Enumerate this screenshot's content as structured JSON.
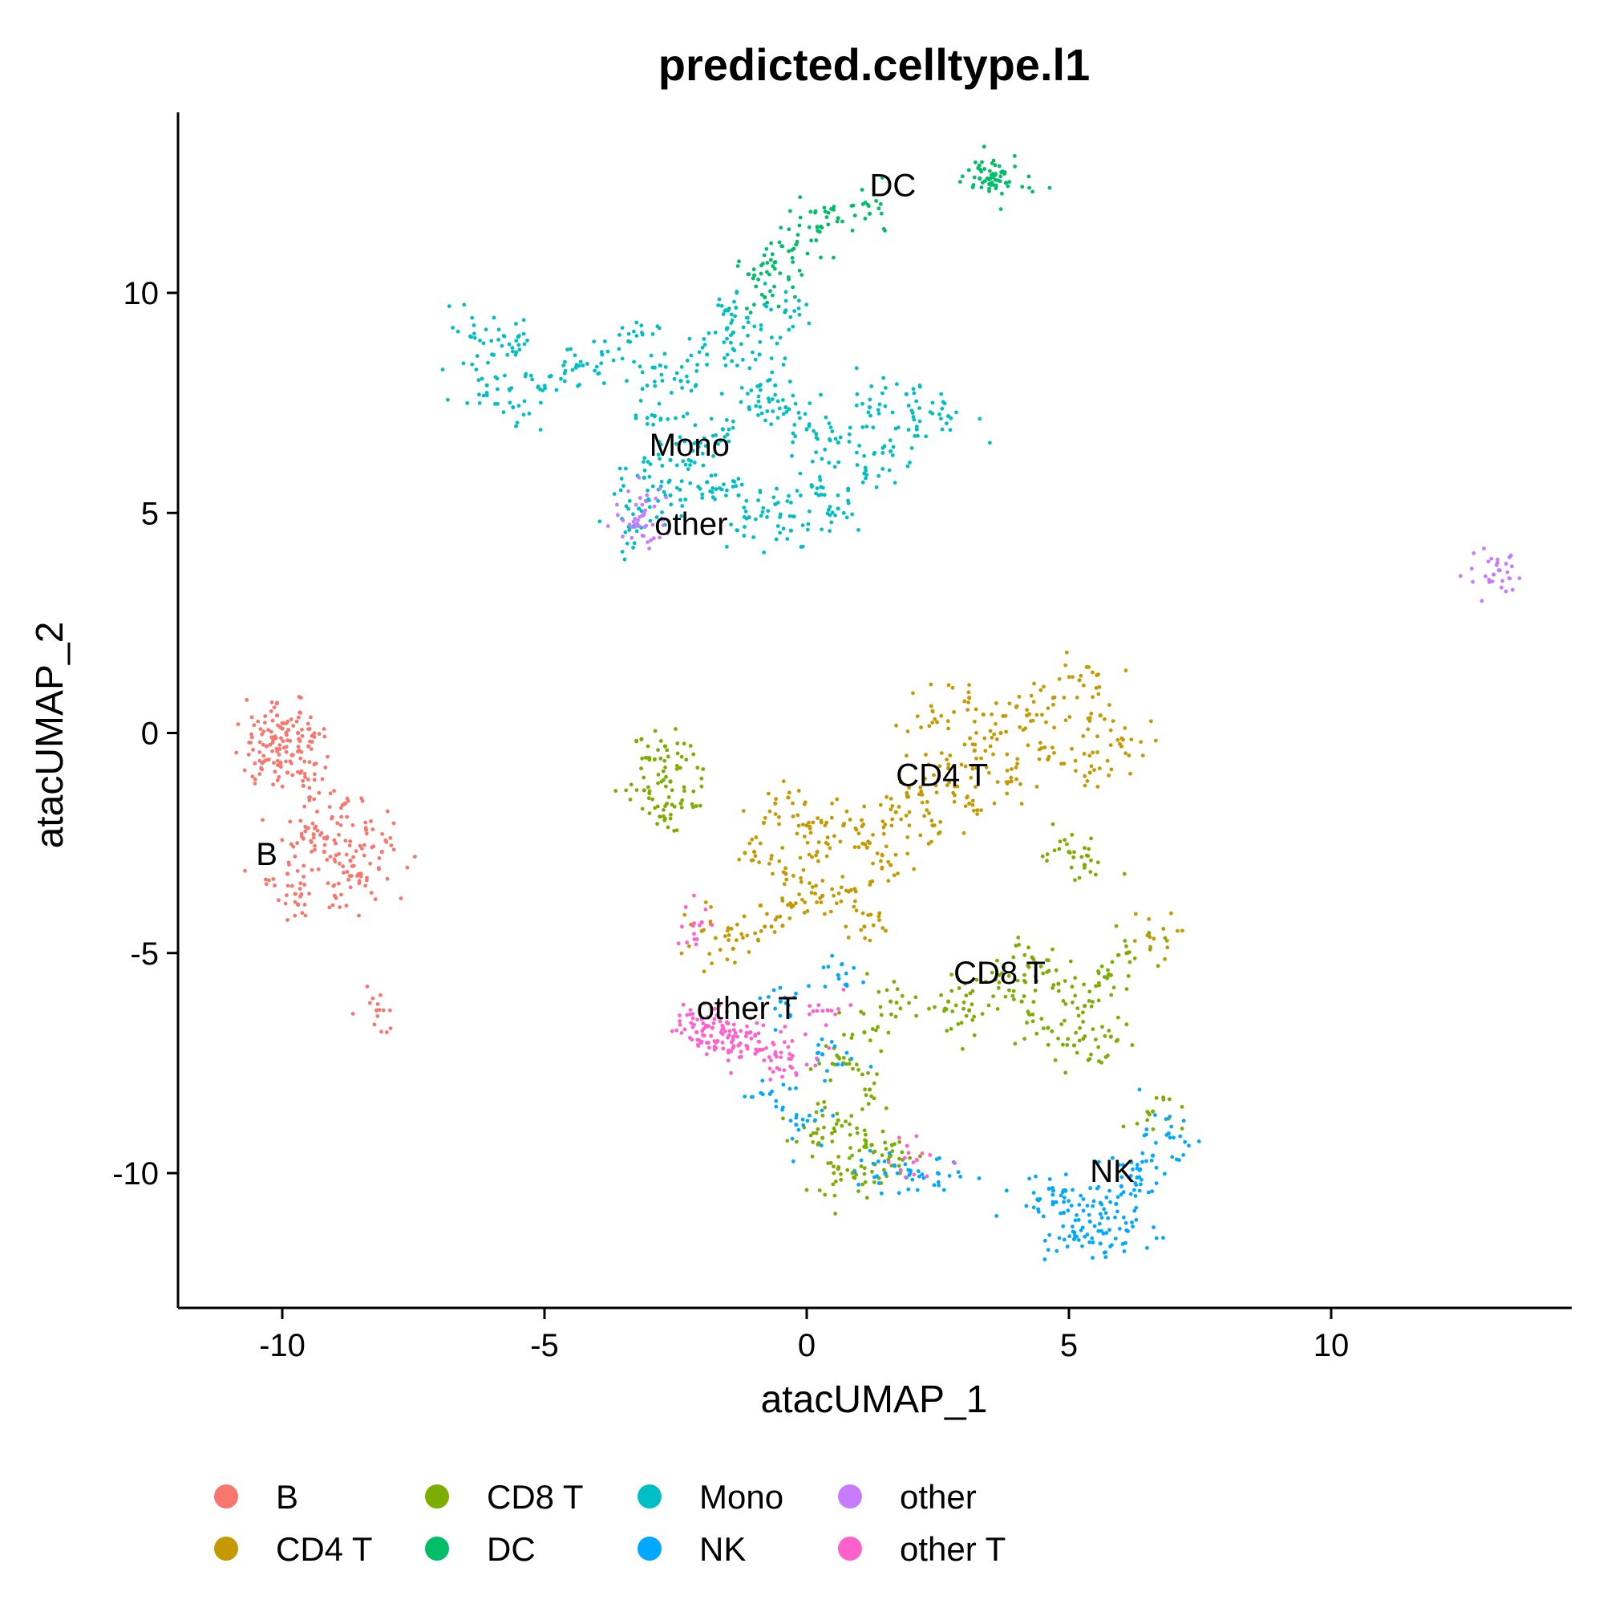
{
  "chart_data": {
    "type": "scatter",
    "title": "predicted.celltype.l1",
    "xlabel": "atacUMAP_1",
    "ylabel": "atacUMAP_2",
    "xlim": [
      -12,
      14.5
    ],
    "ylim": [
      -12.9,
      14
    ],
    "x_ticks": [
      {
        "value": -10,
        "label": "-10"
      },
      {
        "value": -5,
        "label": "-5"
      },
      {
        "value": 0,
        "label": "0"
      },
      {
        "value": 5,
        "label": "5"
      },
      {
        "value": 10,
        "label": "10"
      }
    ],
    "y_ticks": [
      {
        "value": -10,
        "label": "-10"
      },
      {
        "value": -5,
        "label": "-5"
      },
      {
        "value": 0,
        "label": "0"
      },
      {
        "value": 5,
        "label": "5"
      },
      {
        "value": 10,
        "label": "10"
      }
    ],
    "grid": false,
    "legend_position": "bottom",
    "series": [
      {
        "name": "B",
        "color": "#F8766D",
        "points": [
          [
            -10.3,
            -0.3
          ],
          [
            -10.0,
            0.1
          ],
          [
            -9.8,
            -0.5
          ],
          [
            -10.1,
            0.4
          ],
          [
            -9.7,
            0.0
          ],
          [
            -10.4,
            -0.8
          ],
          [
            -9.9,
            -0.9
          ],
          [
            -9.5,
            -0.3
          ],
          [
            -10.2,
            -0.1
          ],
          [
            -9.6,
            -1.2
          ],
          [
            -8.8,
            -1.6
          ],
          [
            -8.4,
            -2.2
          ],
          [
            -9.4,
            -2.3
          ],
          [
            -8.1,
            -2.7
          ],
          [
            -8.5,
            -3.2
          ],
          [
            -9.0,
            -3.7
          ],
          [
            -9.7,
            -3.9
          ],
          [
            -9.9,
            -3.2
          ],
          [
            -9.2,
            -2.7
          ],
          [
            -8.7,
            -2.9
          ],
          [
            -9.6,
            -2.4
          ],
          [
            -8.2,
            -6.3
          ]
        ]
      },
      {
        "name": "CD4 T",
        "color": "#C49A00",
        "points": [
          [
            -2.0,
            -4.5
          ],
          [
            -1.4,
            -4.9
          ],
          [
            -0.8,
            -4.4
          ],
          [
            -0.3,
            -3.9
          ],
          [
            0.3,
            -3.7
          ],
          [
            -0.4,
            -3.2
          ],
          [
            0.2,
            -2.7
          ],
          [
            0.7,
            -2.1
          ],
          [
            1.2,
            -2.5
          ],
          [
            1.7,
            -1.8
          ],
          [
            2.2,
            -1.4
          ],
          [
            2.7,
            -0.8
          ],
          [
            3.2,
            -0.4
          ],
          [
            3.7,
            0.0
          ],
          [
            4.2,
            0.4
          ],
          [
            4.7,
            0.8
          ],
          [
            5.2,
            1.2
          ],
          [
            5.6,
            0.4
          ],
          [
            6.0,
            -0.3
          ],
          [
            5.4,
            -0.9
          ],
          [
            4.6,
            -0.6
          ],
          [
            3.9,
            -1.1
          ],
          [
            3.1,
            -1.6
          ],
          [
            2.4,
            -2.1
          ],
          [
            1.6,
            -3.0
          ],
          [
            0.8,
            -3.6
          ],
          [
            0.0,
            -2.1
          ],
          [
            -0.6,
            -1.6
          ],
          [
            2.4,
            0.5
          ],
          [
            3.1,
            0.8
          ],
          [
            1.1,
            -4.4
          ],
          [
            -1.0,
            -2.7
          ],
          [
            6.5,
            -4.6
          ]
        ]
      },
      {
        "name": "CD8 T",
        "color": "#7CAE00",
        "points": [
          [
            -2.9,
            -0.6
          ],
          [
            -2.6,
            -1.1
          ],
          [
            -3.1,
            -1.3
          ],
          [
            -2.7,
            -0.3
          ],
          [
            -2.4,
            -1.6
          ],
          [
            -2.8,
            -1.9
          ],
          [
            4.3,
            -5.1
          ],
          [
            4.8,
            -5.7
          ],
          [
            5.3,
            -6.2
          ],
          [
            5.8,
            -5.5
          ],
          [
            4.6,
            -6.7
          ],
          [
            5.1,
            -7.1
          ],
          [
            5.8,
            -6.9
          ],
          [
            4.1,
            -6.1
          ],
          [
            6.1,
            -5.0
          ],
          [
            3.6,
            -5.6
          ],
          [
            3.1,
            -6.3
          ],
          [
            1.6,
            -6.1
          ],
          [
            1.1,
            -6.8
          ],
          [
            0.7,
            -7.5
          ],
          [
            1.2,
            -8.1
          ],
          [
            0.6,
            -8.8
          ],
          [
            1.1,
            -9.4
          ],
          [
            0.6,
            -9.9
          ],
          [
            1.3,
            -9.8
          ],
          [
            0.9,
            -10.1
          ],
          [
            1.6,
            -9.6
          ],
          [
            0.3,
            -9.2
          ],
          [
            2.7,
            -6.1
          ],
          [
            6.6,
            -8.6
          ],
          [
            5.0,
            -2.7
          ],
          [
            5.3,
            -3.0
          ]
        ]
      },
      {
        "name": "DC",
        "color": "#00BE67",
        "points": [
          [
            -1.0,
            10.4
          ],
          [
            -0.6,
            10.7
          ],
          [
            -0.2,
            11.1
          ],
          [
            0.2,
            11.5
          ],
          [
            0.6,
            11.7
          ],
          [
            1.2,
            11.8
          ],
          [
            3.5,
            12.6
          ],
          [
            3.8,
            12.5
          ],
          [
            3.3,
            12.6
          ],
          [
            3.6,
            12.7
          ],
          [
            -0.8,
            9.9
          ]
        ]
      },
      {
        "name": "Mono",
        "color": "#00BFC4",
        "points": [
          [
            -6.4,
            9.0
          ],
          [
            -6.0,
            8.6
          ],
          [
            -5.5,
            9.0
          ],
          [
            -6.1,
            7.9
          ],
          [
            -5.6,
            7.4
          ],
          [
            -4.9,
            8.1
          ],
          [
            -4.4,
            8.3
          ],
          [
            -3.9,
            8.6
          ],
          [
            -3.4,
            8.9
          ],
          [
            -2.9,
            8.3
          ],
          [
            -2.4,
            8.0
          ],
          [
            -1.9,
            8.6
          ],
          [
            -1.4,
            9.1
          ],
          [
            -0.9,
            8.6
          ],
          [
            -0.6,
            7.9
          ],
          [
            -1.1,
            7.4
          ],
          [
            -1.6,
            6.9
          ],
          [
            -2.1,
            6.6
          ],
          [
            -2.6,
            6.2
          ],
          [
            -3.1,
            5.8
          ],
          [
            -2.6,
            5.4
          ],
          [
            -1.9,
            5.7
          ],
          [
            -1.3,
            5.4
          ],
          [
            -0.6,
            5.2
          ],
          [
            0.1,
            5.6
          ],
          [
            0.6,
            5.1
          ],
          [
            1.1,
            5.9
          ],
          [
            1.6,
            6.4
          ],
          [
            2.1,
            6.9
          ],
          [
            2.7,
            7.2
          ],
          [
            1.9,
            7.7
          ],
          [
            1.2,
            7.4
          ],
          [
            0.6,
            6.6
          ],
          [
            0.0,
            6.9
          ],
          [
            -0.4,
            7.4
          ],
          [
            -2.9,
            7.2
          ],
          [
            -3.3,
            4.7
          ],
          [
            -3.2,
            5.1
          ],
          [
            -0.4,
            9.6
          ],
          [
            -1.5,
            9.6
          ],
          [
            -1.1,
            4.9
          ],
          [
            -0.3,
            4.6
          ]
        ]
      },
      {
        "name": "NK",
        "color": "#00A9FF",
        "points": [
          [
            4.4,
            -10.6
          ],
          [
            4.9,
            -10.9
          ],
          [
            5.4,
            -11.1
          ],
          [
            5.9,
            -10.7
          ],
          [
            6.3,
            -10.1
          ],
          [
            5.1,
            -11.5
          ],
          [
            5.6,
            -11.6
          ],
          [
            4.7,
            -10.4
          ],
          [
            6.1,
            -11.3
          ],
          [
            6.6,
            -9.6
          ],
          [
            6.9,
            -9.1
          ],
          [
            6.0,
            -10.3
          ],
          [
            1.5,
            -10.0
          ],
          [
            2.5,
            -10.0
          ],
          [
            1.9,
            -10.1
          ],
          [
            -0.7,
            -8.2
          ],
          [
            -0.2,
            -8.9
          ],
          [
            0.3,
            -7.3
          ],
          [
            0.6,
            -5.5
          ],
          [
            -0.5,
            -6.1
          ]
        ]
      },
      {
        "name": "other",
        "color": "#C77CFF",
        "points": [
          [
            13.1,
            3.6
          ],
          [
            13.2,
            3.7
          ],
          [
            -3.3,
            4.8
          ],
          [
            -3.2,
            4.7
          ],
          [
            -3.1,
            5.0
          ]
        ]
      },
      {
        "name": "other T",
        "color": "#FF61CC",
        "points": [
          [
            -2.1,
            -6.8
          ],
          [
            -1.7,
            -7.0
          ],
          [
            -1.3,
            -7.1
          ],
          [
            -1.8,
            -6.7
          ],
          [
            -2.0,
            -6.5
          ],
          [
            -1.5,
            -6.6
          ],
          [
            -0.9,
            -7.2
          ],
          [
            -1.4,
            -6.9
          ],
          [
            -0.6,
            -7.3
          ],
          [
            0.4,
            -6.3
          ],
          [
            -0.3,
            -7.4
          ],
          [
            2.1,
            -9.7
          ],
          [
            -2.0,
            -4.3
          ]
        ]
      }
    ],
    "cluster_labels": [
      {
        "text": "DC",
        "x": 1.2,
        "y": 12.2
      },
      {
        "text": "Mono",
        "x": -3.0,
        "y": 6.3
      },
      {
        "text": "other",
        "x": -2.9,
        "y": 4.5
      },
      {
        "text": "CD4 T",
        "x": 1.7,
        "y": -1.2
      },
      {
        "text": "B",
        "x": -10.5,
        "y": -3.0
      },
      {
        "text": "CD8 T",
        "x": 2.8,
        "y": -5.7
      },
      {
        "text": "other T",
        "x": -2.1,
        "y": -6.5
      },
      {
        "text": "NK",
        "x": 5.4,
        "y": -10.2
      }
    ]
  },
  "legend": {
    "items": [
      "B",
      "CD4 T",
      "CD8 T",
      "DC",
      "Mono",
      "NK",
      "other",
      "other T"
    ],
    "colors": [
      "#F8766D",
      "#C49A00",
      "#7CAE00",
      "#00BE67",
      "#00BFC4",
      "#00A9FF",
      "#C77CFF",
      "#FF61CC"
    ]
  }
}
